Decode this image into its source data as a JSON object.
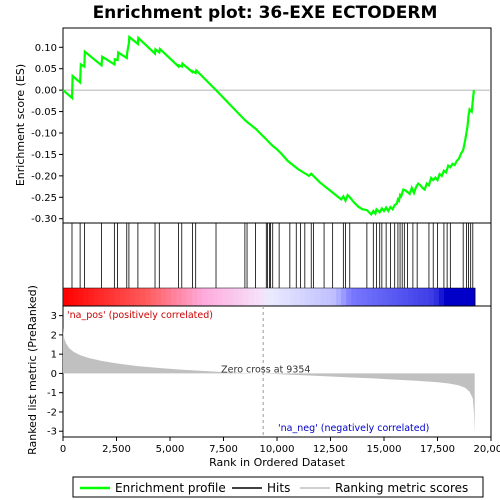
{
  "chart_data": {
    "type": "line",
    "title": "Enrichment plot: 36-EXE ECTODERM",
    "es_panel": {
      "ylabel": "Enrichment score (ES)",
      "ylim": [
        -0.31,
        0.145
      ],
      "yticks": [
        0.1,
        0.05,
        0.0,
        -0.05,
        -0.1,
        -0.15,
        -0.2,
        -0.25,
        -0.3
      ],
      "ytick_labels": [
        "0.10",
        "0.05",
        "0.00",
        "-0.05",
        "-0.10",
        "-0.15",
        "-0.20",
        "-0.25",
        "-0.30"
      ],
      "series": [
        {
          "name": "Enrichment profile",
          "color": "#00ff00",
          "x": [
            0,
            420,
            450,
            800,
            830,
            1000,
            1020,
            1800,
            1830,
            2400,
            2420,
            2550,
            2580,
            2980,
            3000,
            3080,
            3100,
            3500,
            3520,
            4300,
            4320,
            4500,
            4530,
            5400,
            5420,
            5550,
            5580,
            6050,
            6080,
            6200,
            6230,
            7150,
            8500,
            8600,
            9000,
            9300,
            9500,
            9600,
            9800,
            10000,
            10200,
            10500,
            11000,
            11500,
            11600,
            12000,
            12500,
            13000,
            13100,
            13200,
            13300,
            13400,
            13600,
            13800,
            14000,
            14200,
            14400,
            14500,
            14600,
            14650,
            14800,
            14900,
            15000,
            15100,
            15200,
            15300,
            15400,
            15500,
            15600,
            15650,
            15700,
            15750,
            15800,
            15900,
            16000,
            16200,
            16300,
            16400,
            16500,
            16600,
            16700,
            16800,
            16900,
            17000,
            17100,
            17200,
            17300,
            17400,
            17500,
            17600,
            17700,
            17800,
            17900,
            18000,
            18100,
            18200,
            18300,
            18400,
            18500,
            18600,
            18700,
            18800,
            18850,
            18900,
            18950,
            19000,
            19100,
            19200
          ],
          "y": [
            0.0,
            -0.018,
            0.033,
            0.018,
            0.06,
            0.055,
            0.09,
            0.058,
            0.078,
            0.06,
            0.072,
            0.07,
            0.088,
            0.075,
            0.088,
            0.11,
            0.124,
            0.108,
            0.122,
            0.085,
            0.095,
            0.088,
            0.096,
            0.055,
            0.058,
            0.055,
            0.062,
            0.042,
            0.044,
            0.04,
            0.046,
            0.0,
            -0.07,
            -0.074,
            -0.09,
            -0.105,
            -0.115,
            -0.12,
            -0.13,
            -0.138,
            -0.148,
            -0.165,
            -0.185,
            -0.2,
            -0.195,
            -0.215,
            -0.235,
            -0.255,
            -0.248,
            -0.258,
            -0.245,
            -0.25,
            -0.262,
            -0.272,
            -0.278,
            -0.28,
            -0.29,
            -0.282,
            -0.288,
            -0.278,
            -0.285,
            -0.276,
            -0.282,
            -0.274,
            -0.282,
            -0.273,
            -0.278,
            -0.268,
            -0.265,
            -0.255,
            -0.258,
            -0.245,
            -0.248,
            -0.232,
            -0.234,
            -0.242,
            -0.228,
            -0.24,
            -0.226,
            -0.218,
            -0.222,
            -0.228,
            -0.232,
            -0.218,
            -0.222,
            -0.205,
            -0.21,
            -0.204,
            -0.21,
            -0.196,
            -0.2,
            -0.188,
            -0.192,
            -0.176,
            -0.18,
            -0.172,
            -0.175,
            -0.165,
            -0.16,
            -0.148,
            -0.14,
            -0.115,
            -0.1,
            -0.085,
            -0.06,
            -0.045,
            -0.05,
            0.0
          ]
        }
      ]
    },
    "hits_panel": {
      "name": "Hits",
      "hits": [
        420,
        800,
        1000,
        1800,
        2400,
        2550,
        2980,
        3080,
        3500,
        4300,
        4500,
        5400,
        5550,
        6050,
        6200,
        7150,
        8500,
        8600,
        9000,
        9500,
        9550,
        9650,
        9700,
        9800,
        10100,
        10600,
        10900,
        11100,
        11300,
        11600,
        11700,
        12200,
        12600,
        13100,
        13200,
        13400,
        14200,
        14500,
        14650,
        14800,
        14900,
        15100,
        15300,
        15500,
        15650,
        15750,
        15850,
        15950,
        16100,
        16350,
        16550,
        17100,
        17300,
        17500,
        17800,
        17950,
        18100,
        18700,
        18850,
        18950,
        19050,
        19150
      ],
      "gradient_colors": [
        "#ff0000",
        "#ff4d4d",
        "#ffb3d9",
        "#e6e6ff",
        "#9999ff",
        "#3333ff",
        "#0000cc"
      ]
    },
    "metric_panel": {
      "name": "Ranking metric scores",
      "ylabel": "Ranked list metric (PreRanked)",
      "ylim": [
        -3.3,
        3.5
      ],
      "yticks": [
        3,
        2,
        1,
        0,
        -1,
        -2,
        -3
      ],
      "ytick_labels": [
        "3",
        "2",
        "1",
        "0",
        "-1",
        "-2",
        "-3"
      ],
      "x": [
        0,
        20,
        60,
        150,
        300,
        500,
        800,
        1200,
        1800,
        2500,
        3500,
        4500,
        5500,
        6500,
        7500,
        8500,
        9354,
        10500,
        11500,
        12500,
        13500,
        14500,
        15500,
        16500,
        17500,
        18000,
        18500,
        18800,
        19000,
        19150,
        19200,
        19240
      ],
      "y": [
        2.4,
        2.1,
        1.8,
        1.55,
        1.3,
        1.12,
        0.95,
        0.8,
        0.65,
        0.52,
        0.38,
        0.28,
        0.2,
        0.13,
        0.07,
        0.02,
        0.0,
        -0.06,
        -0.11,
        -0.16,
        -0.21,
        -0.26,
        -0.32,
        -0.38,
        -0.46,
        -0.52,
        -0.62,
        -0.75,
        -0.95,
        -1.3,
        -2.0,
        -3.1
      ],
      "zero_cross_label": "Zero cross at 9354",
      "zero_cross_x": 9354,
      "pos_label": "'na_pos' (positively correlated)",
      "neg_label": "'na_neg' (negatively correlated)"
    },
    "xaxis": {
      "xlabel": "Rank in Ordered Dataset",
      "xlim": [
        0,
        20000
      ],
      "xticks": [
        0,
        2500,
        5000,
        7500,
        10000,
        12500,
        15000,
        17500,
        20000
      ],
      "xtick_labels": [
        "0",
        "2,500",
        "5,000",
        "7,500",
        "10,000",
        "12,500",
        "15,000",
        "17,500",
        "20,000"
      ],
      "n_genes": 19250
    },
    "legend": {
      "position": "bottom",
      "entries": [
        {
          "label": "Enrichment profile",
          "color": "#00ff00"
        },
        {
          "label": "Hits",
          "color": "#000000"
        },
        {
          "label": "Ranking metric scores",
          "color": "#c0c0c0"
        }
      ]
    }
  }
}
